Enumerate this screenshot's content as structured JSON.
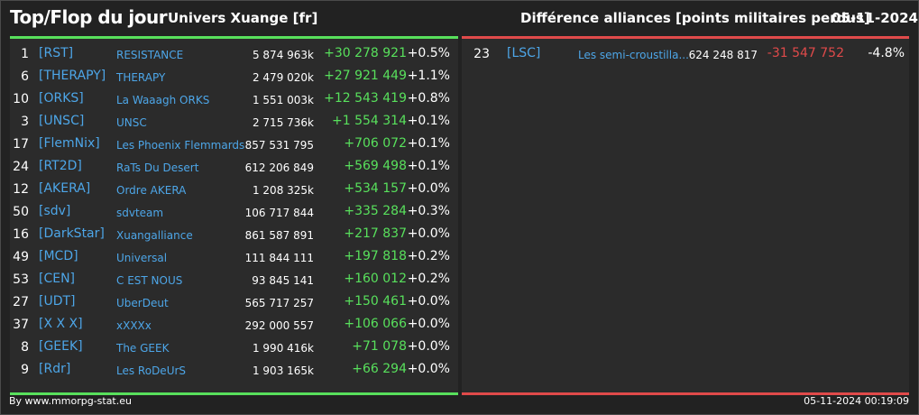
{
  "header": {
    "title": "Top/Flop du jour",
    "universe": "Univers Xuange [fr]",
    "stat_title": "Différence alliances [points militaires perdus]",
    "date": "05-11-2024"
  },
  "colors": {
    "positive": "#58e05c",
    "negative": "#e04a4a",
    "link": "#4da6e8",
    "background": "#2b2b2b"
  },
  "top": [
    {
      "rank": "1",
      "tag": "[RST]",
      "name": "RESISTANCE",
      "points": "5 874 963k",
      "diff": "+30 278 921",
      "pct": "+0.5%"
    },
    {
      "rank": "6",
      "tag": "[THERAPY]",
      "name": "THERAPY",
      "points": "2 479 020k",
      "diff": "+27 921 449",
      "pct": "+1.1%"
    },
    {
      "rank": "10",
      "tag": "[ORKS]",
      "name": "La Waaagh ORKS",
      "points": "1 551 003k",
      "diff": "+12 543 419",
      "pct": "+0.8%"
    },
    {
      "rank": "3",
      "tag": "[UNSC]",
      "name": "UNSC",
      "points": "2 715 736k",
      "diff": "+1 554 314",
      "pct": "+0.1%"
    },
    {
      "rank": "17",
      "tag": "[FlemNix]",
      "name": "Les Phoenix Flemmards",
      "points": "857 531 795",
      "diff": "+706 072",
      "pct": "+0.1%"
    },
    {
      "rank": "24",
      "tag": "[RT2D]",
      "name": "RaTs Du Desert",
      "points": "612 206 849",
      "diff": "+569 498",
      "pct": "+0.1%"
    },
    {
      "rank": "12",
      "tag": "[AKERA]",
      "name": "Ordre AKERA",
      "points": "1 208 325k",
      "diff": "+534 157",
      "pct": "+0.0%"
    },
    {
      "rank": "50",
      "tag": "[sdv]",
      "name": "sdvteam",
      "points": "106 717 844",
      "diff": "+335 284",
      "pct": "+0.3%"
    },
    {
      "rank": "16",
      "tag": "[DarkStar]",
      "name": "Xuangalliance",
      "points": "861 587 891",
      "diff": "+217 837",
      "pct": "+0.0%"
    },
    {
      "rank": "49",
      "tag": "[MCD]",
      "name": "Universal",
      "points": "111 844 111",
      "diff": "+197 818",
      "pct": "+0.2%"
    },
    {
      "rank": "53",
      "tag": "[CEN]",
      "name": "C EST NOUS",
      "points": "93 845 141",
      "diff": "+160 012",
      "pct": "+0.2%"
    },
    {
      "rank": "27",
      "tag": "[UDT]",
      "name": "UberDeut",
      "points": "565 717 257",
      "diff": "+150 461",
      "pct": "+0.0%"
    },
    {
      "rank": "37",
      "tag": "[X X X]",
      "name": "xXXXx",
      "points": "292 000 557",
      "diff": "+106 066",
      "pct": "+0.0%"
    },
    {
      "rank": "8",
      "tag": "[GEEK]",
      "name": "The GEEK",
      "points": "1 990 416k",
      "diff": "+71 078",
      "pct": "+0.0%"
    },
    {
      "rank": "9",
      "tag": "[Rdr]",
      "name": "Les RoDeUrS",
      "points": "1 903 165k",
      "diff": "+66 294",
      "pct": "+0.0%"
    }
  ],
  "flop": [
    {
      "rank": "23",
      "tag": "[LSC]",
      "name": "Les semi-croustilla...",
      "points": "624 248 817",
      "diff": "-31 547 752",
      "pct": "-4.8%"
    }
  ],
  "footer": {
    "source": "By www.mmorpg-stat.eu",
    "timestamp": "05-11-2024 00:19:09"
  }
}
